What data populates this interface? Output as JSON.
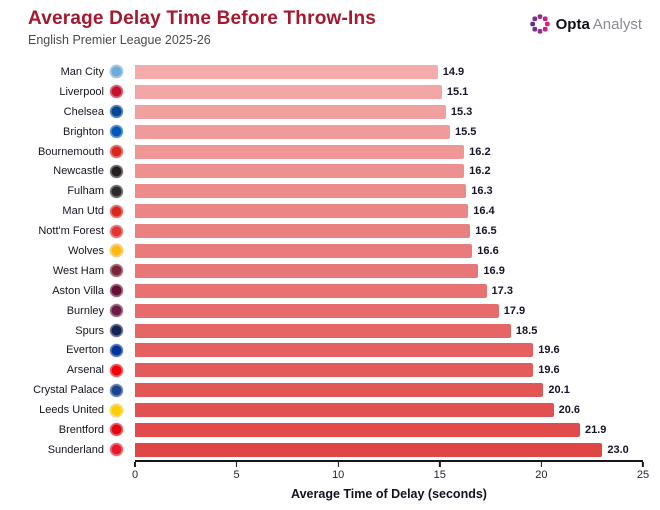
{
  "header": {
    "title": "Average Delay Time Before Throw-Ins",
    "subtitle": "English Premier League 2025-26",
    "logo": {
      "brand_bold": "Opta",
      "brand_light": "Analyst",
      "accent": "#B0228C"
    }
  },
  "chart_data": {
    "type": "bar",
    "orientation": "horizontal",
    "title": "Average Delay Time Before Throw-Ins",
    "subtitle": "English Premier League 2025-26",
    "xlabel": "Average Time of Delay (seconds)",
    "ylabel": "",
    "xlim": [
      0,
      25
    ],
    "x_ticks": [
      0,
      5,
      10,
      15,
      20,
      25
    ],
    "grid": false,
    "legend": false,
    "bar_color_start": "#F3ABAB",
    "bar_color_end": "#E04646",
    "value_label_color": "#15152a",
    "title_color": "#A5182E",
    "categories": [
      "Man City",
      "Liverpool",
      "Chelsea",
      "Brighton",
      "Bournemouth",
      "Newcastle",
      "Fulham",
      "Man Utd",
      "Nott'm Forest",
      "Wolves",
      "West Ham",
      "Aston Villa",
      "Burnley",
      "Spurs",
      "Everton",
      "Arsenal",
      "Crystal Palace",
      "Leeds United",
      "Brentford",
      "Sunderland"
    ],
    "values": [
      14.9,
      15.1,
      15.3,
      15.5,
      16.2,
      16.2,
      16.3,
      16.4,
      16.5,
      16.6,
      16.9,
      17.3,
      17.9,
      18.5,
      19.6,
      19.6,
      20.1,
      20.6,
      21.9,
      23.0
    ],
    "crest_colors": [
      "#6CABDD",
      "#C8102E",
      "#034694",
      "#0057B8",
      "#DA291C",
      "#241F20",
      "#2b2b2b",
      "#DA291C",
      "#E53233",
      "#FDB913",
      "#7A263A",
      "#670E36",
      "#6C1D45",
      "#132257",
      "#003399",
      "#EF0107",
      "#1B458F",
      "#FFCD00",
      "#E30613",
      "#EB172B"
    ]
  }
}
